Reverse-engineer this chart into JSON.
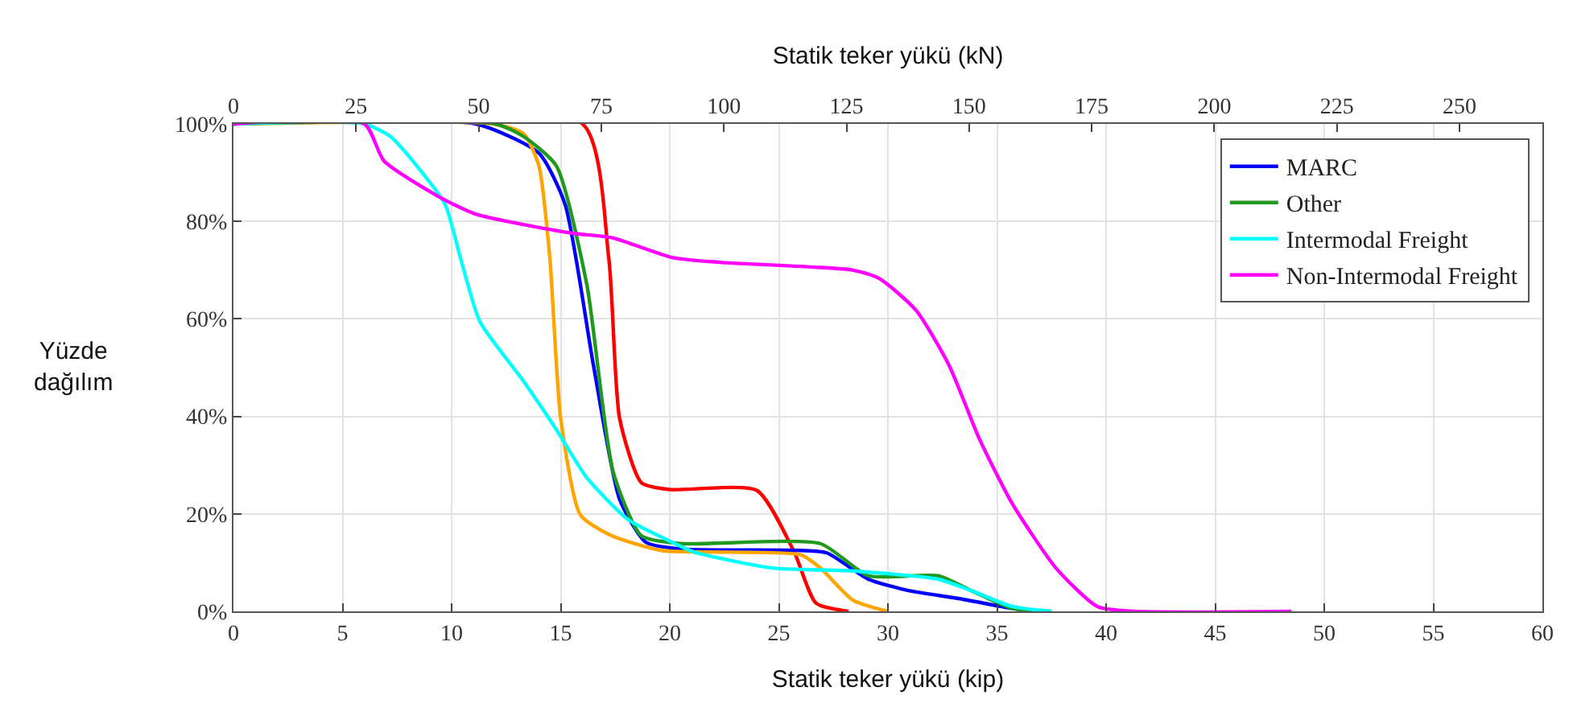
{
  "chart_data": {
    "type": "line",
    "xlabel": "Statik teker yükü (kip)",
    "x2label": "Statik teker yükü (kN)",
    "ylabel": "Yüzde\ndağılım",
    "xlim": [
      0,
      60
    ],
    "xticks": [
      0,
      5,
      10,
      15,
      20,
      25,
      30,
      35,
      40,
      45,
      50,
      55,
      60
    ],
    "x2lim": [
      0,
      266.9
    ],
    "x2ticks": [
      0,
      25,
      50,
      75,
      100,
      125,
      150,
      175,
      200,
      225,
      250
    ],
    "ylim": [
      0,
      100
    ],
    "yticks": [
      {
        "value": 0,
        "label": "0%"
      },
      {
        "value": 20,
        "label": "20%"
      },
      {
        "value": 40,
        "label": "40%"
      },
      {
        "value": 60,
        "label": "60%"
      },
      {
        "value": 80,
        "label": "80%"
      },
      {
        "value": 100,
        "label": "100%"
      }
    ],
    "grid": true,
    "legend": "top right",
    "marker": "none",
    "line_style": "solid",
    "series": [
      {
        "color": "#ff0000",
        "x": [
          0,
          16.0,
          17.2,
          17.7,
          18.7,
          20.0,
          24.0,
          25.7,
          26.7,
          28.2
        ],
        "values": [
          100,
          100,
          72.6,
          39.6,
          26.4,
          25,
          24.8,
          12.2,
          1.7,
          0
        ]
      },
      {
        "name": "MARC",
        "color": "#0000ff",
        "x": [
          0,
          11.1,
          14.0,
          15.2,
          16.5,
          17.7,
          18.9,
          20.5,
          26.0,
          27.2,
          29.1,
          30.9,
          33.3,
          35.7,
          37.0
        ],
        "values": [
          100,
          100,
          94,
          83.5,
          50.5,
          23,
          14.2,
          12.8,
          12.5,
          12.0,
          6.6,
          4.3,
          2.6,
          0.6,
          0
        ]
      },
      {
        "color": "#ffa500",
        "x": [
          0,
          11.9,
          13.3,
          14.0,
          14.5,
          15.0,
          15.9,
          17.2,
          19.6,
          26.0,
          26.9,
          28.4,
          30.0
        ],
        "values": [
          100,
          100,
          98,
          91.4,
          72.6,
          39.6,
          19.8,
          15.8,
          12.5,
          11.6,
          8.9,
          2.3,
          0
        ]
      },
      {
        "name": "Other",
        "color": "#1f9a1f",
        "x": [
          0,
          12.0,
          13.3,
          14.8,
          16.2,
          17.4,
          18.7,
          20.5,
          26.9,
          29.1,
          32.3,
          33.8,
          35.7,
          37.5
        ],
        "values": [
          100,
          100,
          97.4,
          91.4,
          67,
          28.7,
          15.5,
          13.9,
          13.9,
          7.3,
          7.3,
          4.3,
          0.6,
          0
        ]
      },
      {
        "name": "Intermodal Freight",
        "color": "#00ffff",
        "x": [
          0,
          6.0,
          7.2,
          8.4,
          9.7,
          10.4,
          11.3,
          13.3,
          14.8,
          16.2,
          18.1,
          20.1,
          21.1,
          24.7,
          28.4,
          32.3,
          33.8,
          35.7,
          37.5
        ],
        "values": [
          100,
          100,
          97.4,
          91.4,
          83.5,
          72.6,
          59.4,
          47.2,
          37.3,
          27.4,
          18.8,
          14.2,
          12.2,
          8.9,
          8.3,
          6.6,
          4.3,
          1,
          0
        ]
      },
      {
        "name": "Non-Intermodal Freight",
        "color": "#ff00ff",
        "x": [
          0,
          6.0,
          6.9,
          9.4,
          11.1,
          15.5,
          17.4,
          20.1,
          22.3,
          28.4,
          29.6,
          31.3,
          32.8,
          34.2,
          35.7,
          37.7,
          39.6,
          41.3,
          48.5
        ],
        "values": [
          100,
          100,
          92.4,
          85.1,
          81.5,
          77.6,
          76.6,
          72.6,
          71.6,
          70,
          68.3,
          61.7,
          50.5,
          35.3,
          22.1,
          8.9,
          1,
          0,
          0
        ]
      }
    ]
  }
}
